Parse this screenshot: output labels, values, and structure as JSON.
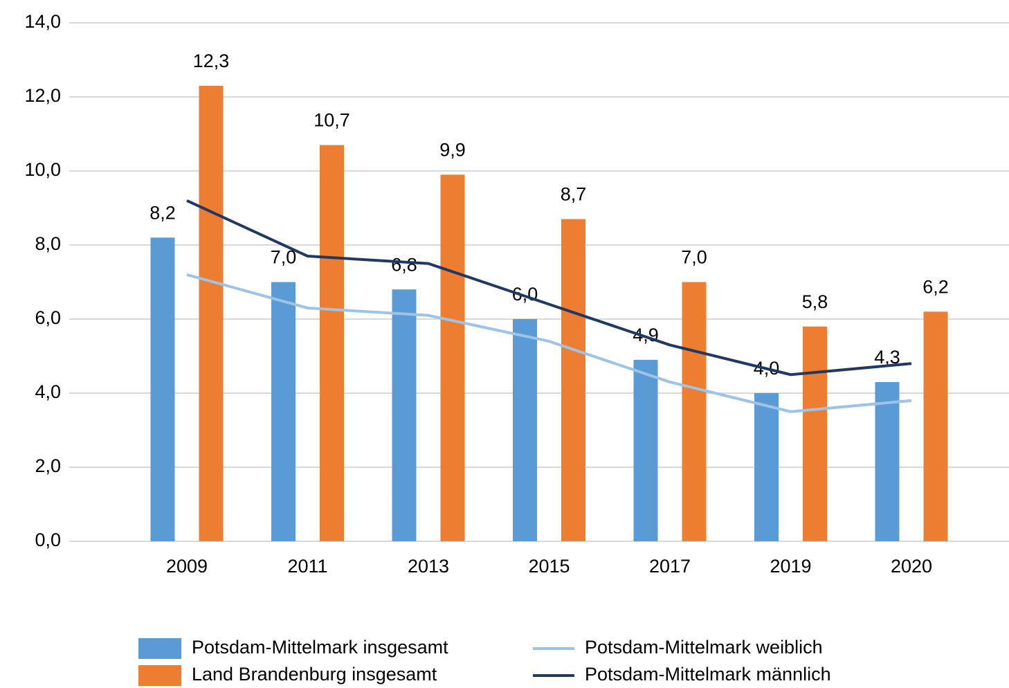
{
  "chart_data": {
    "type": "bar",
    "categories": [
      "2009",
      "2011",
      "2013",
      "2015",
      "2017",
      "2019",
      "2020"
    ],
    "series": [
      {
        "name": "Potsdam-Mittelmark insgesamt",
        "type": "bar",
        "color": "#5b9bd5",
        "values": [
          8.2,
          7.0,
          6.8,
          6.0,
          4.9,
          4.0,
          4.3
        ],
        "value_labels": [
          "8,2",
          "7,0",
          "6,8",
          "6,0",
          "4,9",
          "4,0",
          "4,3"
        ]
      },
      {
        "name": "Land Brandenburg insgesamt",
        "type": "bar",
        "color": "#ed7d31",
        "values": [
          12.3,
          10.7,
          9.9,
          8.7,
          7.0,
          5.8,
          6.2
        ],
        "value_labels": [
          "12,3",
          "10,7",
          "9,9",
          "8,7",
          "7,0",
          "5,8",
          "6,2"
        ]
      },
      {
        "name": "Potsdam-Mittelmark weiblich",
        "type": "line",
        "color": "#9dc3e6",
        "values": [
          7.2,
          6.3,
          6.1,
          5.4,
          4.3,
          3.5,
          3.8
        ]
      },
      {
        "name": "Potsdam-Mittelmark männlich",
        "type": "line",
        "color": "#203864",
        "values": [
          9.2,
          7.7,
          7.5,
          6.4,
          5.3,
          4.5,
          4.8
        ]
      }
    ],
    "ylim": [
      0,
      14
    ],
    "yticks": [
      {
        "value": 0,
        "label": "0,0"
      },
      {
        "value": 2,
        "label": "2,0"
      },
      {
        "value": 4,
        "label": "4,0"
      },
      {
        "value": 6,
        "label": "6,0"
      },
      {
        "value": 8,
        "label": "8,0"
      },
      {
        "value": 10,
        "label": "10,0"
      },
      {
        "value": 12,
        "label": "12,0"
      },
      {
        "value": 14,
        "label": "14,0"
      }
    ],
    "grid": true,
    "legend": "bottom"
  }
}
